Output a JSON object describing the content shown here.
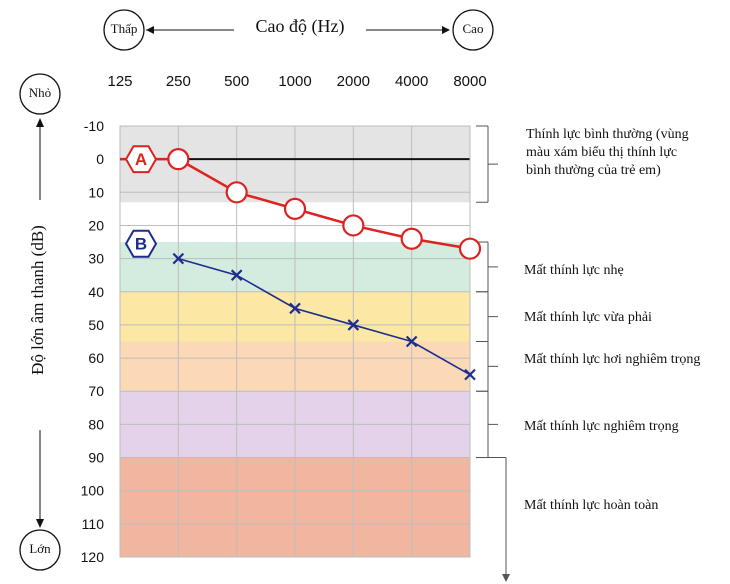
{
  "chart_data": {
    "type": "line",
    "title": "Cao độ (Hz)",
    "xlabel": "Cao độ (Hz)",
    "ylabel": "Độ lớn âm thanh (dB)",
    "x_low_label": "Thấp",
    "x_high_label": "Cao",
    "y_top_label": "Nhỏ",
    "y_bottom_label": "Lớn",
    "categories": [
      "125",
      "250",
      "500",
      "1000",
      "2000",
      "4000",
      "8000"
    ],
    "yticks": [
      "-10",
      "0",
      "10",
      "20",
      "30",
      "40",
      "50",
      "60",
      "70",
      "80",
      "90",
      "100",
      "110",
      "120"
    ],
    "ylim": [
      -15,
      120
    ],
    "series": [
      {
        "name": "A",
        "marker": "circle",
        "color": "#dd2222",
        "x": [
          "250",
          "500",
          "1000",
          "2000",
          "4000",
          "8000"
        ],
        "values": [
          0,
          10,
          15,
          20,
          24,
          27
        ]
      },
      {
        "name": "B",
        "marker": "x",
        "color": "#1c2d8c",
        "x": [
          "250",
          "500",
          "1000",
          "2000",
          "4000",
          "8000"
        ],
        "values": [
          30,
          35,
          45,
          50,
          55,
          65
        ]
      }
    ],
    "bands": [
      {
        "from": -10,
        "to": 13,
        "color": "#e4e4e4",
        "label": "Thính lực bình thường (vùng màu xám biểu thị thính lực bình thường của trẻ em)"
      },
      {
        "from": 25,
        "to": 40,
        "color": "#d3ecdf",
        "label": "Mất thính lực nhẹ"
      },
      {
        "from": 40,
        "to": 55,
        "color": "#fce7a4",
        "label": "Mất thính lực vừa phải"
      },
      {
        "from": 55,
        "to": 70,
        "color": "#fbd9b6",
        "label": "Mất thính lực hơi nghiêm trọng"
      },
      {
        "from": 70,
        "to": 90,
        "color": "#e3d2e9",
        "label": "Mất thính lực nghiêm trọng"
      },
      {
        "from": 90,
        "to": 120,
        "color": "#f1b6a0",
        "label": "Mất thính lực hoàn toàn"
      }
    ]
  }
}
